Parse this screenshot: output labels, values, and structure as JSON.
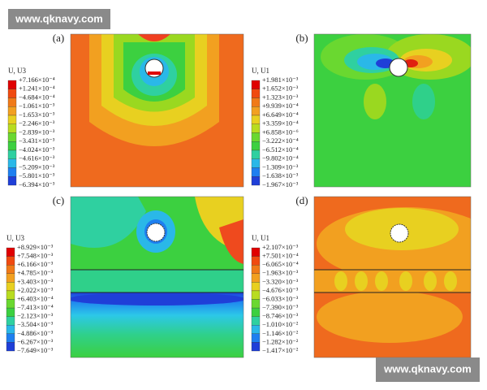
{
  "watermarks": [
    "www.qknavy.com",
    "www.qknavy.com"
  ],
  "panels": [
    {
      "label": "(a)",
      "legend_title": "U, U3",
      "legend_values": [
        "+7.166×10⁻⁴",
        "+1.241×10⁻⁴",
        "−4.684×10⁻⁴",
        "−1.061×10⁻³",
        "−1.653×10⁻³",
        "−2.246×10⁻³",
        "−2.839×10⁻³",
        "−3.431×10⁻³",
        "−4.024×10⁻³",
        "−4.616×10⁻³",
        "−5.209×10⁻³",
        "−5.801×10⁻³",
        "−6.394×10⁻³"
      ]
    },
    {
      "label": "(b)",
      "legend_title": "U, U1",
      "legend_values": [
        "+1.981×10⁻³",
        "+1.652×10⁻³",
        "+1.323×10⁻³",
        "+9.939×10⁻⁴",
        "+6.649×10⁻⁴",
        "+3.359×10⁻⁴",
        "+6.858×10⁻⁶",
        "−3.222×10⁻⁴",
        "−6.512×10⁻⁴",
        "−9.802×10⁻⁴",
        "−1.309×10⁻³",
        "−1.638×10⁻³",
        "−1.967×10⁻³"
      ]
    },
    {
      "label": "(c)",
      "legend_title": "U, U3",
      "legend_values": [
        "+8.929×10⁻³",
        "+7.548×10⁻³",
        "+6.166×10⁻³",
        "+4.785×10⁻³",
        "+3.403×10⁻³",
        "+2.022×10⁻³",
        "+6.403×10⁻⁴",
        "−7.413×10⁻⁴",
        "−2.123×10⁻³",
        "−3.504×10⁻³",
        "−4.886×10⁻³",
        "−6.267×10⁻³",
        "−7.649×10⁻³"
      ]
    },
    {
      "label": "(d)",
      "legend_title": "U, U1",
      "legend_values": [
        "+2.107×10⁻³",
        "+7.501×10⁻⁴",
        "−6.065×10⁻⁴",
        "−1.963×10⁻³",
        "−3.320×10⁻³",
        "−4.676×10⁻³",
        "−6.033×10⁻³",
        "−7.390×10⁻³",
        "−8.746×10⁻³",
        "−1.010×10⁻²",
        "−1.146×10⁻²",
        "−1.282×10⁻²",
        "−1.417×10⁻²"
      ]
    }
  ]
}
